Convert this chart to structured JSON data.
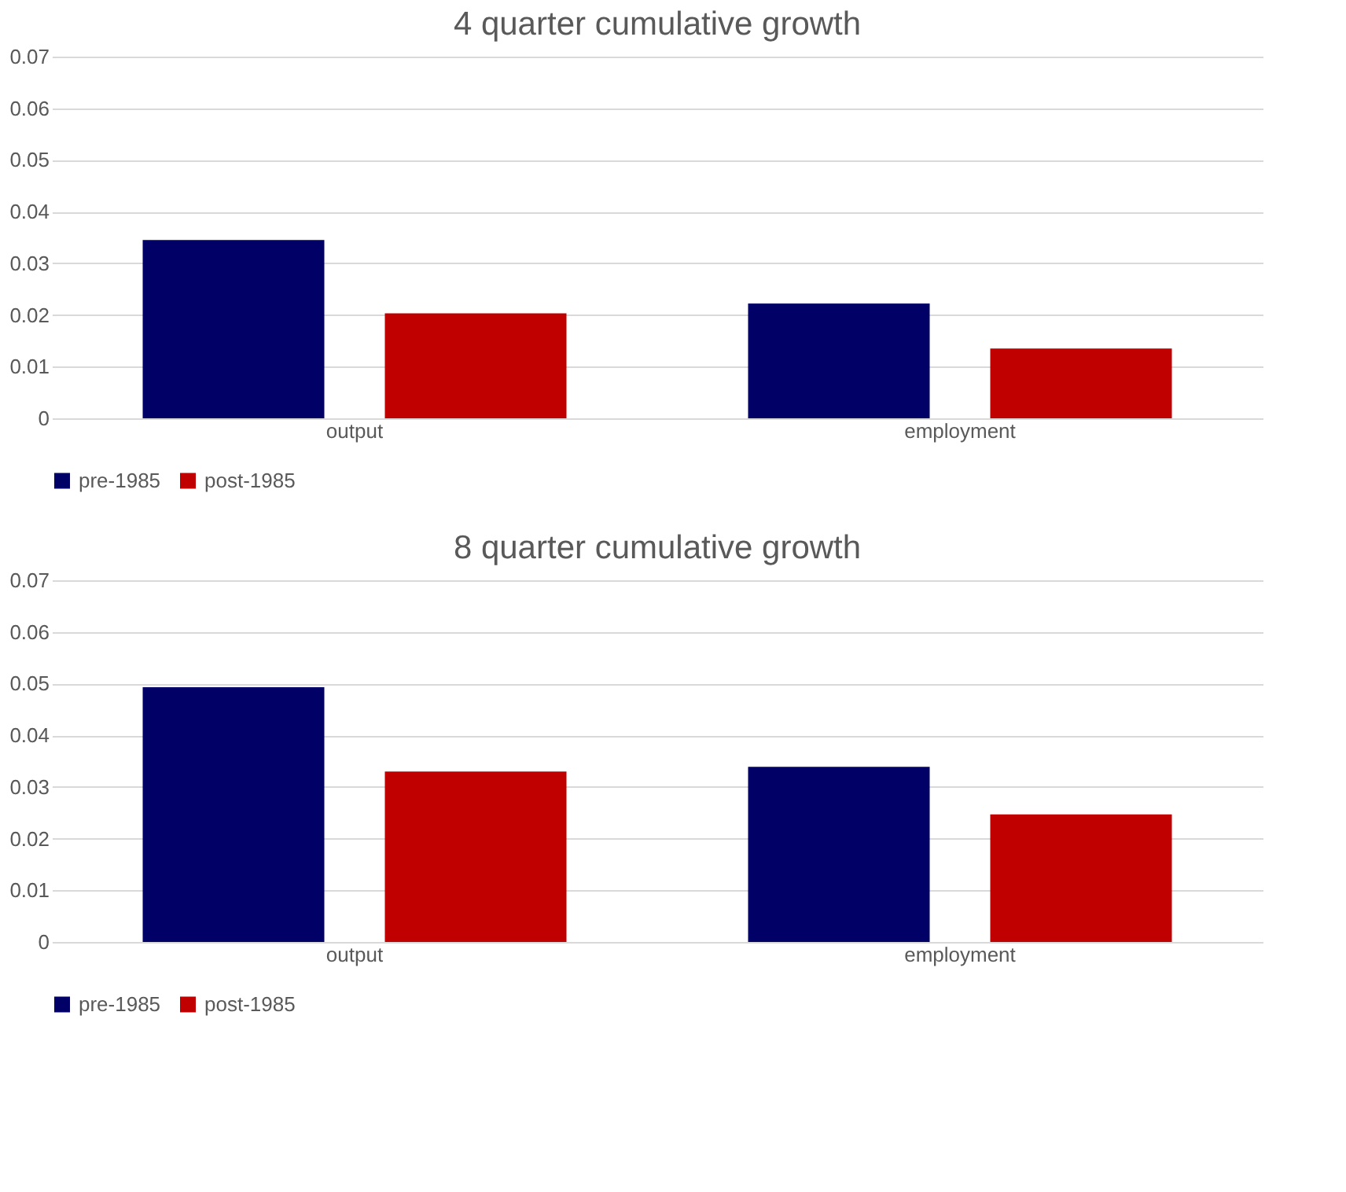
{
  "chart_data": [
    {
      "type": "bar",
      "title": "4 quarter cumulative growth",
      "categories": [
        "output",
        "employment"
      ],
      "series": [
        {
          "name": "pre-1985",
          "color": "#000066",
          "values": [
            0.0345,
            0.0222
          ]
        },
        {
          "name": "post-1985",
          "color": "#c00000",
          "values": [
            0.0203,
            0.0135
          ]
        }
      ],
      "ylim": [
        0,
        0.07
      ],
      "yticks": [
        0,
        0.01,
        0.02,
        0.03,
        0.04,
        0.05,
        0.06,
        0.07
      ],
      "grid": "y",
      "legend": "bottom"
    },
    {
      "type": "bar",
      "title": "8 quarter cumulative growth",
      "categories": [
        "output",
        "employment"
      ],
      "series": [
        {
          "name": "pre-1985",
          "color": "#000066",
          "values": [
            0.0493,
            0.0339
          ]
        },
        {
          "name": "post-1985",
          "color": "#c00000",
          "values": [
            0.033,
            0.0247
          ]
        }
      ],
      "ylim": [
        0,
        0.07
      ],
      "yticks": [
        0,
        0.01,
        0.02,
        0.03,
        0.04,
        0.05,
        0.06,
        0.07
      ],
      "grid": "y",
      "legend": "bottom"
    }
  ]
}
